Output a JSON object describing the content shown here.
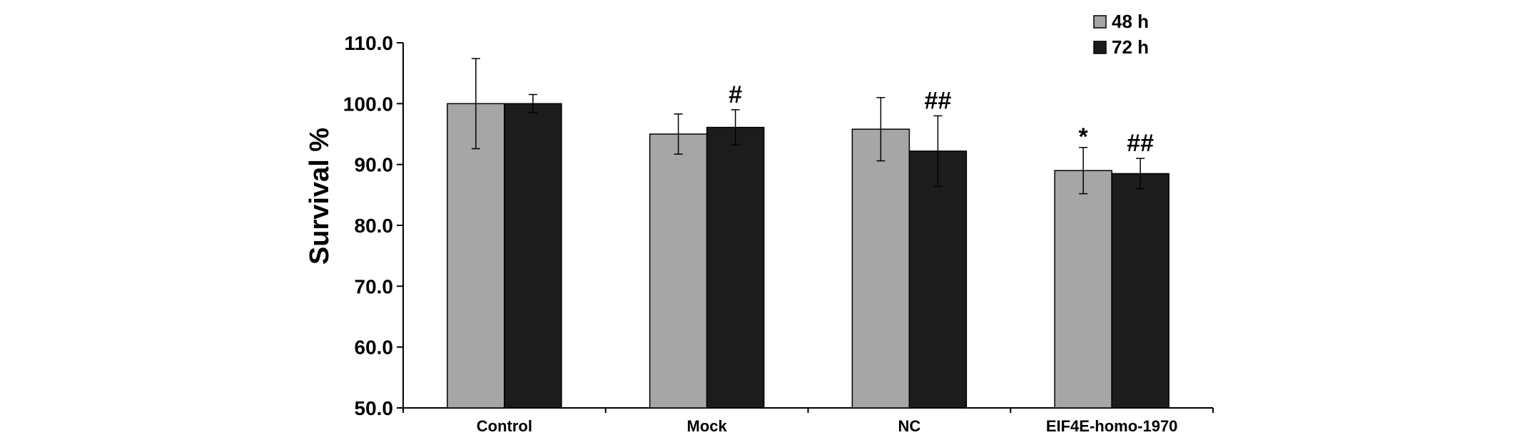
{
  "chart_data": {
    "type": "bar",
    "title": "",
    "xlabel": "",
    "ylabel": "Survival %",
    "ylim": [
      50,
      110
    ],
    "yticks": [
      "50.0",
      "60.0",
      "70.0",
      "80.0",
      "90.0",
      "100.0",
      "110.0"
    ],
    "categories": [
      "Control",
      "Mock",
      "NC",
      "EIF4E-homo-1970"
    ],
    "series": [
      {
        "name": "48 h",
        "color": "#a6a6a6",
        "values": [
          100.0,
          95.0,
          95.8,
          89.0
        ],
        "errors": [
          7.4,
          3.3,
          5.2,
          3.8
        ],
        "annotations": [
          "",
          "",
          "",
          "*"
        ]
      },
      {
        "name": "72 h",
        "color": "#1c1c1c",
        "values": [
          100.0,
          96.1,
          92.2,
          88.5
        ],
        "errors": [
          1.5,
          2.9,
          5.8,
          2.5
        ],
        "annotations": [
          "",
          "#",
          "##",
          "##"
        ]
      }
    ],
    "grid": false,
    "legend": "top-right"
  }
}
